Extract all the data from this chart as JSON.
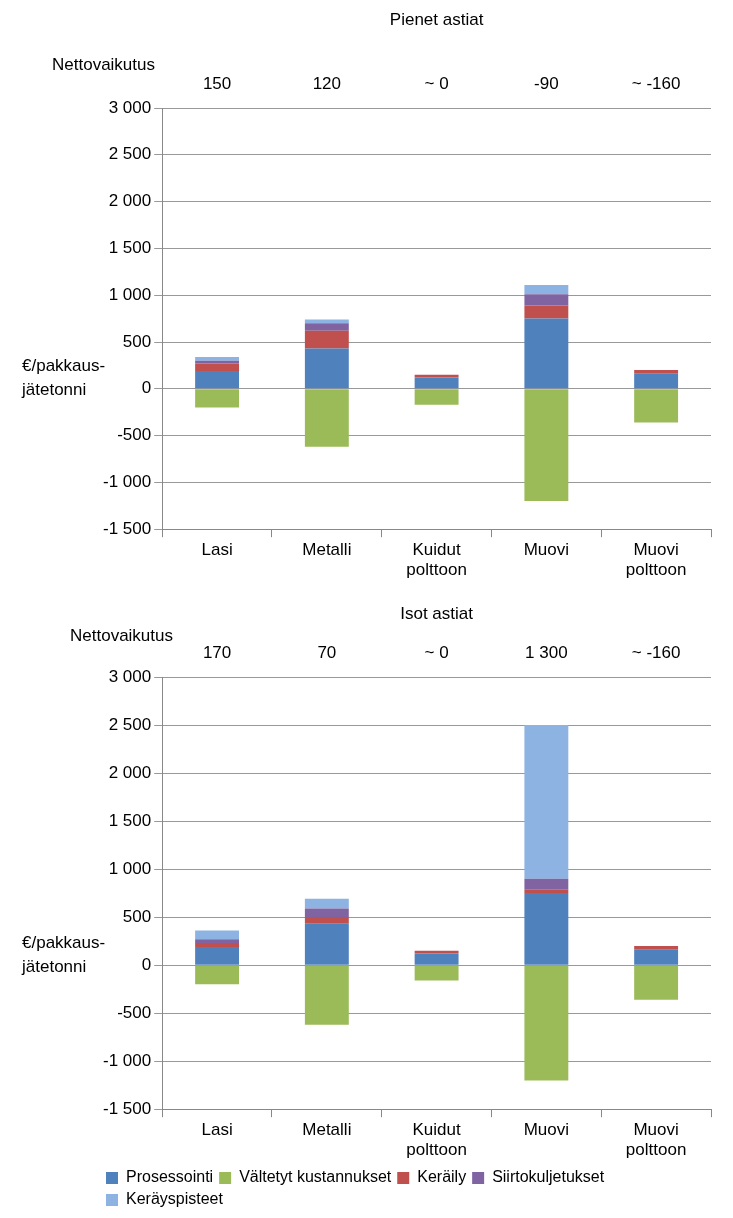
{
  "chart_data": [
    {
      "type": "bar",
      "title": "Pienet astiat",
      "ylabel": "€/pakkaus-jätetonni",
      "stacked": true,
      "grid": "y",
      "legend": false,
      "categories": [
        "Lasi",
        "Metalli",
        "Kuidut polttoon",
        "Muovi",
        "Muovi polttoon"
      ],
      "series": [
        {
          "color": "#4f81bd",
          "values": [
            190,
            430,
            120,
            750,
            160
          ]
        },
        {
          "color": "#9bbb59",
          "values": [
            -200,
            -620,
            -170,
            -1200,
            -360
          ]
        },
        {
          "color": "#c0504d",
          "values": [
            80,
            190,
            30,
            140,
            40
          ]
        },
        {
          "color": "#8064a2",
          "values": [
            30,
            80,
            null,
            120,
            null
          ]
        },
        {
          "color": "#8db3e2",
          "values": [
            40,
            40,
            null,
            100,
            null
          ]
        }
      ],
      "ylim": [
        -1500,
        3000
      ],
      "yticks": [
        {
          "value": -1500,
          "label": "-1 500"
        },
        {
          "value": -1000,
          "label": "-1 000"
        },
        -500,
        0,
        500,
        {
          "value": 1000,
          "label": "1 000"
        },
        {
          "value": 1500,
          "label": "1 500"
        },
        {
          "value": 2000,
          "label": "2 000"
        },
        {
          "value": 2500,
          "label": "2 500"
        },
        {
          "value": 3000,
          "label": "3 000"
        }
      ],
      "annotations": [
        "Nettovaikutus",
        "150",
        "120",
        "~ 0",
        "-90",
        "~ -160"
      ]
    },
    {
      "type": "bar",
      "title": "Isot astiat",
      "ylabel": "€/pakkaus-jätetonni",
      "stacked": true,
      "grid": "y",
      "legend": "bottom",
      "categories": [
        "Lasi",
        "Metalli",
        "Kuidut polttoon",
        "Muovi",
        "Muovi polttoon"
      ],
      "series": [
        {
          "name": "Prosessointi",
          "color": "#4f81bd",
          "values": [
            190,
            430,
            120,
            750,
            160
          ]
        },
        {
          "name": "Vältetyt kustannukset",
          "color": "#9bbb59",
          "values": [
            -200,
            -620,
            -160,
            -1200,
            -360
          ]
        },
        {
          "name": "Keräily",
          "color": "#c0504d",
          "values": [
            40,
            70,
            30,
            40,
            40
          ]
        },
        {
          "name": "Siirtokuljetukset",
          "color": "#8064a2",
          "values": [
            40,
            90,
            null,
            110,
            null
          ]
        },
        {
          "name": "Keräyspisteet",
          "color": "#8db3e2",
          "values": [
            90,
            100,
            null,
            1600,
            null
          ]
        }
      ],
      "ylim": [
        -1500,
        3000
      ],
      "yticks": [
        {
          "value": -1500,
          "label": "-1 500"
        },
        {
          "value": -1000,
          "label": "-1 000"
        },
        -500,
        0,
        500,
        {
          "value": 1000,
          "label": "1 000"
        },
        {
          "value": 1500,
          "label": "1 500"
        },
        {
          "value": 2000,
          "label": "2 000"
        },
        {
          "value": 2500,
          "label": "2 500"
        },
        {
          "value": 3000,
          "label": "3 000"
        }
      ],
      "annotations": [
        "Nettovaikutus",
        "170",
        "70",
        "~ 0",
        "1 300",
        "~ -160"
      ]
    }
  ]
}
